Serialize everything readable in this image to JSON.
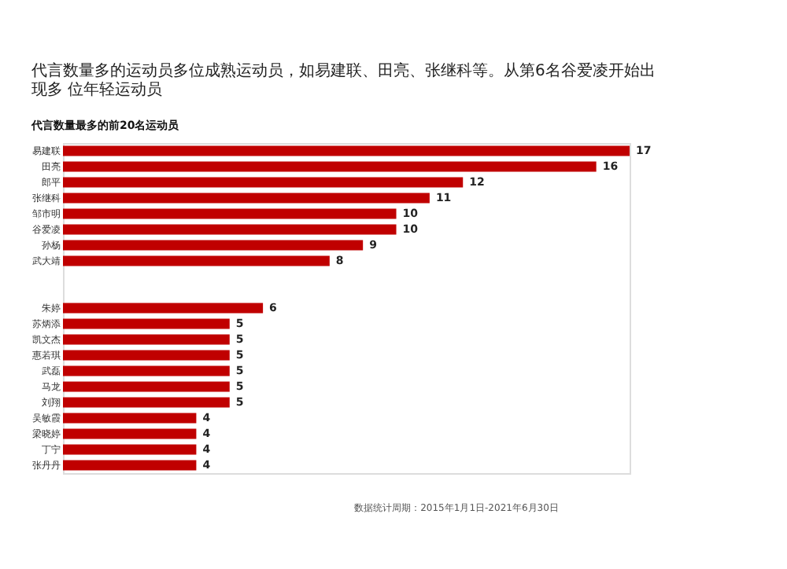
{
  "chart_data": {
    "type": "bar",
    "orientation": "horizontal",
    "title": "代言数量多的运动员多位成熟运动员，如易建联、田亮、张继科等。从第6名谷爱凌开始出现多 位年轻运动员",
    "subtitle": "代言数量最多的前20名运动员",
    "categories": [
      "易建联",
      "田亮",
      "郎平",
      "张继科",
      "邹市明",
      "谷爱凌",
      "孙杨",
      "武大靖",
      null,
      null,
      "朱婷",
      "苏炳添",
      "凯文杰",
      "惠若琪",
      "武磊",
      "马龙",
      "刘翔",
      "吴敏霞",
      "梁晓婷",
      "丁宁",
      "张丹丹"
    ],
    "values": [
      17,
      16,
      12,
      11,
      10,
      10,
      9,
      8,
      null,
      null,
      6,
      5,
      5,
      5,
      5,
      5,
      5,
      4,
      4,
      4,
      4
    ],
    "color": "#c00000",
    "data_labels": true,
    "annotations": [
      "数据统计周期：2015年1月1日-2021年6月30日"
    ]
  }
}
